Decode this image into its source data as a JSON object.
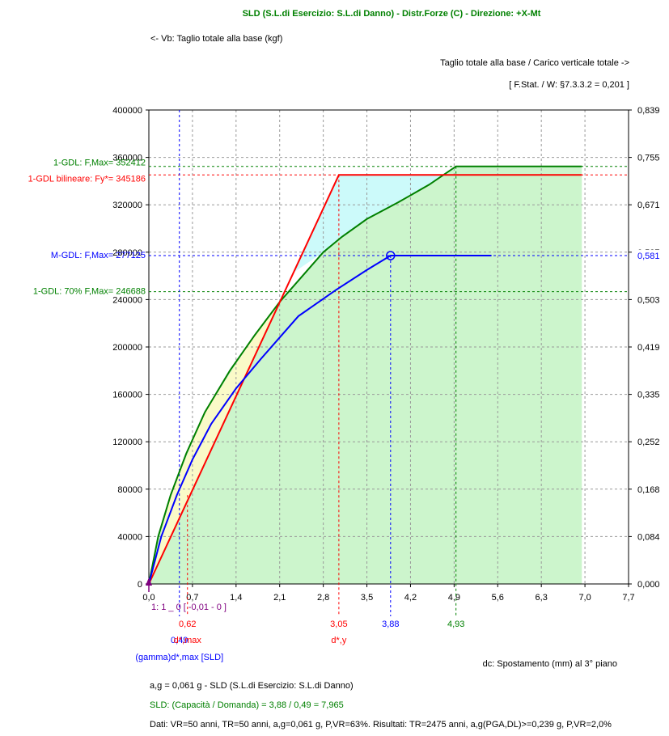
{
  "chart_data": {
    "type": "line",
    "title": "SLD (S.L.di Esercizio: S.L.di Danno) - Distr.Forze (C) - Direzione: +X-Mt",
    "left_axis_label": "<- Vb: Taglio totale alla base (kgf)",
    "right_axis_label": "Taglio totale alla base / Carico verticale totale ->",
    "right_axis_note": "[ F.Stat. / W: §7.3.3.2 = 0,201 ]",
    "xlabel": "dc: Spostamento (mm) al 3° piano",
    "xlim": [
      0,
      7.7
    ],
    "ylim": [
      0,
      400000
    ],
    "x_ticks": [
      "0,0",
      "0,7",
      "1,4",
      "2,1",
      "2,8",
      "3,5",
      "4,2",
      "4,9",
      "5,6",
      "6,3",
      "7,0",
      "7,7"
    ],
    "y_ticks": [
      "0",
      "40000",
      "80000",
      "120000",
      "160000",
      "200000",
      "240000",
      "280000",
      "320000",
      "360000",
      "400000"
    ],
    "y2_ticks": [
      "0,000",
      "0,084",
      "0,168",
      "0,252",
      "0,335",
      "0,419",
      "0,503",
      "0,587",
      "0,671",
      "0,755",
      "0,839"
    ],
    "series": [
      {
        "name": "1-GDL",
        "color": "#008000",
        "x": [
          0,
          0.15,
          0.35,
          0.6,
          0.9,
          1.3,
          1.7,
          2.1,
          2.5,
          2.8,
          3.1,
          3.5,
          4.0,
          4.5,
          4.93,
          6.95
        ],
        "y": [
          0,
          40000,
          75000,
          110000,
          145000,
          180000,
          210000,
          238000,
          262000,
          280000,
          293000,
          308000,
          322000,
          337000,
          352412,
          352412
        ]
      },
      {
        "name": "1-GDL bilineare",
        "color": "#ff0000",
        "x": [
          0,
          3.05,
          6.95
        ],
        "y": [
          0,
          345186,
          345186
        ]
      },
      {
        "name": "M-GDL",
        "color": "#0000ff",
        "x": [
          0,
          0.2,
          0.45,
          0.7,
          1.0,
          1.4,
          1.8,
          2.4,
          3.0,
          3.5,
          3.88,
          5.5
        ],
        "y": [
          0,
          40000,
          75000,
          105000,
          135000,
          165000,
          190000,
          226000,
          248000,
          265000,
          277125,
          277125
        ]
      }
    ],
    "hlines": [
      {
        "label": "1-GDL: F,Max= 352412",
        "y": 352412,
        "color": "#008000"
      },
      {
        "label": "1-GDL bilineare: Fy*= 345186",
        "y": 345186,
        "color": "#ff0000"
      },
      {
        "label": "M-GDL: F,Max= 277125",
        "y": 277125,
        "color": "#0000ff",
        "right_label": "0,581"
      },
      {
        "label": "1-GDL: 70% F,Max= 246688",
        "y": 246688,
        "color": "#008000"
      }
    ],
    "vlines": [
      {
        "x": 0.49,
        "color": "#0000ff",
        "label": "0,49",
        "caption": "(gamma)d*,max [SLD]"
      },
      {
        "x": 0.62,
        "color": "#ff0000",
        "label": "0,62",
        "caption": "d*,max"
      },
      {
        "x": 3.05,
        "color": "#ff0000",
        "label": "3,05",
        "caption": "d*,y"
      },
      {
        "x": 3.88,
        "color": "#0000ff",
        "label": "3,88",
        "caption": ""
      },
      {
        "x": 4.93,
        "color": "#008000",
        "label": "4,93",
        "caption": ""
      }
    ],
    "origin_note": "1: 1 _ 0  [ -0,01 - 0 ]",
    "grid": true
  },
  "footer": {
    "line1": "a,g = 0,061 g - SLD (S.L.di Esercizio: S.L.di Danno)",
    "line2": "SLD: (Capacità / Domanda) = 3,88 / 0,49 = 7,965",
    "line3": "Dati: VR=50 anni, TR=50 anni, a,g=0,061 g, P,VR=63%. Risultati: TR=2475 anni, a,g(PGA,DL)>=0,239 g, P,VR=2,0%"
  },
  "colors": {
    "green_fill": "#ccf5cc",
    "cyan_fill": "#ccfafa",
    "yellow_fill": "#fafac8",
    "purple": "#800080"
  }
}
